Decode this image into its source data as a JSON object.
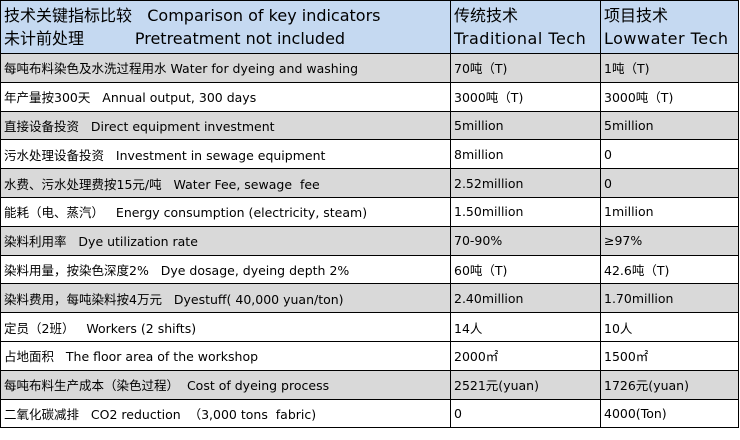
{
  "header": {
    "col1_line1": "技术关键指标比较   Comparison of key indicators",
    "col1_line2": "未计前处理          Pretreatment not included",
    "col2_line1": "传统技术",
    "col2_line2": "Traditional Tech",
    "col3_line1": "项目技术",
    "col3_line2": "Lowwater Tech"
  },
  "rows": [
    {
      "indicator": "每吨布料染色及水洗过程用水 Water for dyeing and washing",
      "traditional": "70吨（T)",
      "lowwater": "1吨（T)",
      "shade": "gray"
    },
    {
      "indicator": "年产量按300天   Annual output, 300 days",
      "traditional": "3000吨（T)",
      "lowwater": "3000吨（T)",
      "shade": "white"
    },
    {
      "indicator": "直接设备投资   Direct equipment investment",
      "traditional": "5million",
      "lowwater": "5million",
      "shade": "gray"
    },
    {
      "indicator": "污水处理设备投资   Investment in sewage equipment",
      "traditional": "8million",
      "lowwater": "0",
      "shade": "white"
    },
    {
      "indicator": "水费、污水处理费按15元/吨   Water Fee, sewage  fee",
      "traditional": "2.52million",
      "lowwater": "0",
      "shade": "gray"
    },
    {
      "indicator": "能耗（电、蒸汽）   Energy consumption (electricity, steam)",
      "traditional": "1.50million",
      "lowwater": "1million",
      "shade": "white"
    },
    {
      "indicator": "染料利用率   Dye utilization rate",
      "traditional": "70-90%",
      "lowwater": "≥97%",
      "shade": "gray"
    },
    {
      "indicator": "染料用量，按染色深度2%   Dye dosage, dyeing depth 2%",
      "traditional": "60吨（T)",
      "lowwater": "42.6吨（T)",
      "shade": "white"
    },
    {
      "indicator": "染料费用，每吨染料按4万元   Dyestuff( 40,000 yuan/ton)",
      "traditional": "2.40million",
      "lowwater": "1.70million",
      "shade": "gray"
    },
    {
      "indicator": "定员（2班）   Workers (2 shifts)",
      "traditional": "14人",
      "lowwater": "10人",
      "shade": "white"
    },
    {
      "indicator": "占地面积   The floor area of the workshop",
      "traditional": "2000㎡",
      "lowwater": "1500㎡",
      "shade": "white"
    },
    {
      "indicator": "每吨布料生产成本（染色过程）  Cost of dyeing process",
      "traditional": "2521元(yuan)",
      "lowwater": "1726元(yuan)",
      "shade": "gray"
    },
    {
      "indicator": "二氧化碳减排   CO2 reduction  （3,000 tons  fabric)",
      "traditional": "0",
      "lowwater": "4000(Ton)",
      "shade": "white"
    }
  ]
}
